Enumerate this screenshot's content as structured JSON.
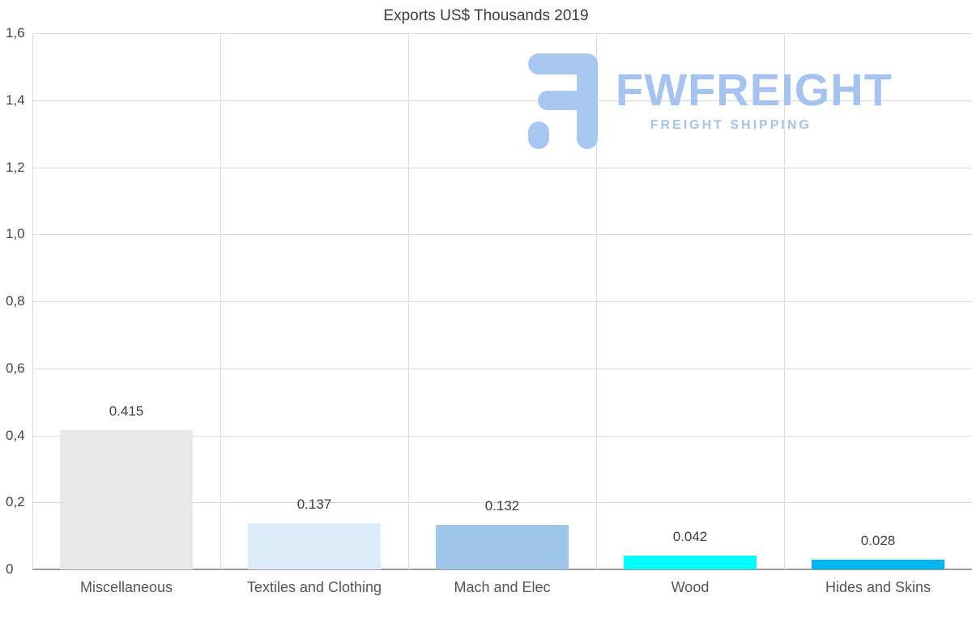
{
  "chart_data": {
    "type": "bar",
    "title": "Exports US$ Thousands 2019",
    "categories": [
      "Miscellaneous",
      "Textiles and Clothing",
      "Mach and Elec",
      "Wood",
      "Hides and Skins"
    ],
    "values": [
      0.415,
      0.137,
      0.132,
      0.042,
      0.028
    ],
    "value_labels": [
      "0.415",
      "0.137",
      "0.132",
      "0.042",
      "0.028"
    ],
    "bar_colors": [
      "#e8e8e8",
      "#dcebfa",
      "#9dc6e8",
      "#00ffff",
      "#00b6ee"
    ],
    "ylim": [
      0,
      1.6
    ],
    "ytick_values": [
      0,
      0.2,
      0.4,
      0.6,
      0.8,
      1.0,
      1.2,
      1.4,
      1.6
    ],
    "ytick_labels": [
      "0",
      "0,2",
      "0,4",
      "0,6",
      "0,8",
      "1,0",
      "1,2",
      "1,4",
      "1,6"
    ],
    "xlabel": "",
    "ylabel": "",
    "grid": true,
    "legend_position": "none"
  },
  "watermark": {
    "brand": "FWFREIGHT",
    "tagline": "FREIGHT SHIPPING",
    "color": "#a5c3ee"
  }
}
